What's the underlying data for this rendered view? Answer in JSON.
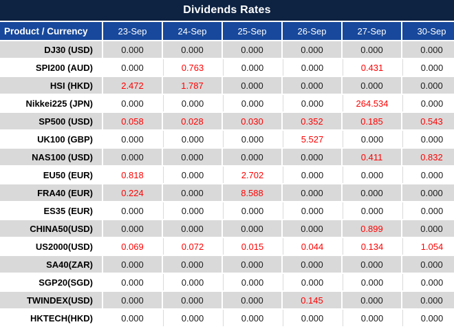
{
  "title": "Dividends Rates",
  "header": {
    "product_column": "Product / Currency",
    "date_columns": [
      "23-Sep",
      "24-Sep",
      "25-Sep",
      "26-Sep",
      "27-Sep",
      "30-Sep"
    ]
  },
  "rows": [
    {
      "product": "DJ30 (USD)",
      "values": [
        "0.000",
        "0.000",
        "0.000",
        "0.000",
        "0.000",
        "0.000"
      ],
      "red": []
    },
    {
      "product": "SPI200 (AUD)",
      "values": [
        "0.000",
        "0.763",
        "0.000",
        "0.000",
        "0.431",
        "0.000"
      ],
      "red": [
        1,
        4
      ]
    },
    {
      "product": "HSI (HKD)",
      "values": [
        "2.472",
        "1.787",
        "0.000",
        "0.000",
        "0.000",
        "0.000"
      ],
      "red": [
        0,
        1
      ]
    },
    {
      "product": "Nikkei225 (JPN)",
      "values": [
        "0.000",
        "0.000",
        "0.000",
        "0.000",
        "264.534",
        "0.000"
      ],
      "red": [
        4
      ]
    },
    {
      "product": "SP500 (USD)",
      "values": [
        "0.058",
        "0.028",
        "0.030",
        "0.352",
        "0.185",
        "0.543"
      ],
      "red": [
        0,
        1,
        2,
        3,
        4,
        5
      ]
    },
    {
      "product": "UK100 (GBP)",
      "values": [
        "0.000",
        "0.000",
        "0.000",
        "5.527",
        "0.000",
        "0.000"
      ],
      "red": [
        3
      ]
    },
    {
      "product": "NAS100 (USD)",
      "values": [
        "0.000",
        "0.000",
        "0.000",
        "0.000",
        "0.411",
        "0.832"
      ],
      "red": [
        4,
        5
      ]
    },
    {
      "product": "EU50 (EUR)",
      "values": [
        "0.818",
        "0.000",
        "2.702",
        "0.000",
        "0.000",
        "0.000"
      ],
      "red": [
        0,
        2
      ]
    },
    {
      "product": "FRA40 (EUR)",
      "values": [
        "0.224",
        "0.000",
        "8.588",
        "0.000",
        "0.000",
        "0.000"
      ],
      "red": [
        0,
        2
      ]
    },
    {
      "product": "ES35 (EUR)",
      "values": [
        "0.000",
        "0.000",
        "0.000",
        "0.000",
        "0.000",
        "0.000"
      ],
      "red": []
    },
    {
      "product": "CHINA50(USD)",
      "values": [
        "0.000",
        "0.000",
        "0.000",
        "0.000",
        "0.899",
        "0.000"
      ],
      "red": [
        4
      ]
    },
    {
      "product": "US2000(USD)",
      "values": [
        "0.069",
        "0.072",
        "0.015",
        "0.044",
        "0.134",
        "1.054"
      ],
      "red": [
        0,
        1,
        2,
        3,
        4,
        5
      ]
    },
    {
      "product": "SA40(ZAR)",
      "values": [
        "0.000",
        "0.000",
        "0.000",
        "0.000",
        "0.000",
        "0.000"
      ],
      "red": []
    },
    {
      "product": "SGP20(SGD)",
      "values": [
        "0.000",
        "0.000",
        "0.000",
        "0.000",
        "0.000",
        "0.000"
      ],
      "red": []
    },
    {
      "product": "TWINDEX(USD)",
      "values": [
        "0.000",
        "0.000",
        "0.000",
        "0.145",
        "0.000",
        "0.000"
      ],
      "red": [
        3
      ]
    },
    {
      "product": "HKTECH(HKD)",
      "values": [
        "0.000",
        "0.000",
        "0.000",
        "0.000",
        "0.000",
        "0.000"
      ],
      "red": []
    }
  ],
  "colors": {
    "title_bg": "#0E2342",
    "header_bg": "#17489B",
    "stripe_bg": "#D9D9D9",
    "value_text": "#1A1A1A",
    "highlight_text": "#FF0000"
  }
}
